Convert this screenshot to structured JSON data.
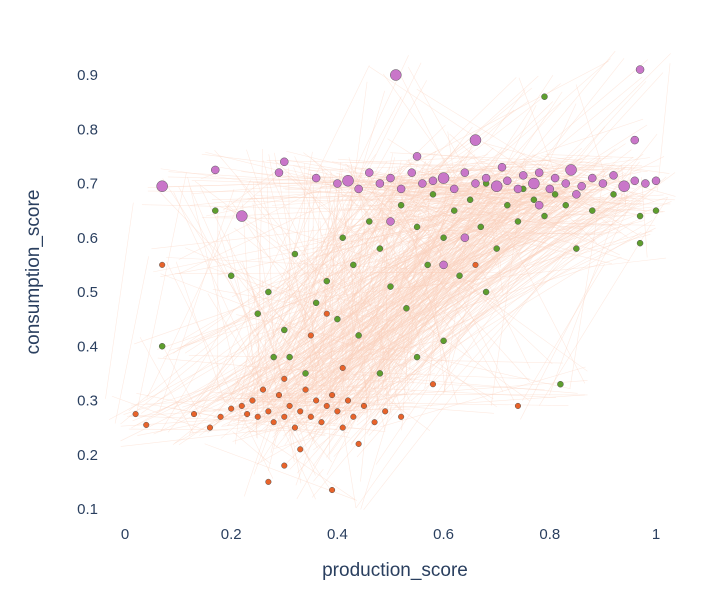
{
  "chart_data": {
    "type": "scatter",
    "title": "",
    "xlabel": "production_score",
    "ylabel": "consumption_score",
    "xlim": [
      -0.02,
      1.03
    ],
    "ylim": [
      0.08,
      0.93
    ],
    "x_ticks": [
      0,
      0.2,
      0.4,
      0.6,
      0.8,
      1
    ],
    "x_tick_labels": [
      "0",
      "0.2",
      "0.4",
      "0.6",
      "0.8",
      "1"
    ],
    "y_ticks": [
      0.1,
      0.2,
      0.3,
      0.4,
      0.5,
      0.6,
      0.7,
      0.8,
      0.9
    ],
    "y_tick_labels": [
      "0.1",
      "0.2",
      "0.3",
      "0.4",
      "0.5",
      "0.6",
      "0.7",
      "0.8",
      "0.9"
    ],
    "grid": false,
    "legend": "none",
    "background_edges_color": "#fbd0bd",
    "series": [
      {
        "color": "#e8632a",
        "points": [
          [
            0.02,
            0.275
          ],
          [
            0.04,
            0.255
          ],
          [
            0.07,
            0.55
          ],
          [
            0.13,
            0.275
          ],
          [
            0.16,
            0.25
          ],
          [
            0.18,
            0.27
          ],
          [
            0.2,
            0.285
          ],
          [
            0.22,
            0.29
          ],
          [
            0.23,
            0.275
          ],
          [
            0.24,
            0.3
          ],
          [
            0.25,
            0.27
          ],
          [
            0.26,
            0.32
          ],
          [
            0.27,
            0.28
          ],
          [
            0.28,
            0.26
          ],
          [
            0.29,
            0.31
          ],
          [
            0.3,
            0.27
          ],
          [
            0.3,
            0.34
          ],
          [
            0.31,
            0.29
          ],
          [
            0.32,
            0.25
          ],
          [
            0.33,
            0.28
          ],
          [
            0.34,
            0.32
          ],
          [
            0.35,
            0.27
          ],
          [
            0.36,
            0.3
          ],
          [
            0.37,
            0.26
          ],
          [
            0.38,
            0.29
          ],
          [
            0.39,
            0.31
          ],
          [
            0.4,
            0.28
          ],
          [
            0.41,
            0.25
          ],
          [
            0.42,
            0.3
          ],
          [
            0.43,
            0.27
          ],
          [
            0.45,
            0.29
          ],
          [
            0.47,
            0.26
          ],
          [
            0.49,
            0.28
          ],
          [
            0.27,
            0.15
          ],
          [
            0.3,
            0.18
          ],
          [
            0.39,
            0.135
          ],
          [
            0.35,
            0.42
          ],
          [
            0.38,
            0.46
          ],
          [
            0.41,
            0.36
          ],
          [
            0.52,
            0.27
          ],
          [
            0.74,
            0.29
          ],
          [
            0.66,
            0.55
          ],
          [
            0.58,
            0.33
          ],
          [
            0.44,
            0.22
          ],
          [
            0.33,
            0.21
          ]
        ]
      },
      {
        "color": "#5e9e2e",
        "points": [
          [
            0.07,
            0.4
          ],
          [
            0.17,
            0.65
          ],
          [
            0.2,
            0.53
          ],
          [
            0.25,
            0.46
          ],
          [
            0.27,
            0.5
          ],
          [
            0.28,
            0.38
          ],
          [
            0.3,
            0.43
          ],
          [
            0.32,
            0.57
          ],
          [
            0.34,
            0.35
          ],
          [
            0.36,
            0.48
          ],
          [
            0.38,
            0.52
          ],
          [
            0.4,
            0.45
          ],
          [
            0.41,
            0.6
          ],
          [
            0.43,
            0.55
          ],
          [
            0.44,
            0.42
          ],
          [
            0.46,
            0.63
          ],
          [
            0.48,
            0.58
          ],
          [
            0.5,
            0.51
          ],
          [
            0.52,
            0.66
          ],
          [
            0.53,
            0.47
          ],
          [
            0.55,
            0.62
          ],
          [
            0.57,
            0.55
          ],
          [
            0.58,
            0.68
          ],
          [
            0.6,
            0.6
          ],
          [
            0.62,
            0.65
          ],
          [
            0.63,
            0.53
          ],
          [
            0.65,
            0.67
          ],
          [
            0.67,
            0.62
          ],
          [
            0.68,
            0.7
          ],
          [
            0.7,
            0.58
          ],
          [
            0.72,
            0.66
          ],
          [
            0.74,
            0.63
          ],
          [
            0.75,
            0.69
          ],
          [
            0.77,
            0.67
          ],
          [
            0.79,
            0.64
          ],
          [
            0.81,
            0.68
          ],
          [
            0.83,
            0.66
          ],
          [
            0.85,
            0.58
          ],
          [
            0.88,
            0.65
          ],
          [
            0.92,
            0.68
          ],
          [
            0.97,
            0.64
          ],
          [
            1.0,
            0.65
          ],
          [
            0.97,
            0.59
          ],
          [
            0.82,
            0.33
          ],
          [
            0.68,
            0.5
          ],
          [
            0.6,
            0.41
          ],
          [
            0.48,
            0.35
          ],
          [
            0.31,
            0.38
          ],
          [
            0.55,
            0.38
          ],
          [
            0.79,
            0.86
          ]
        ]
      },
      {
        "color": "#c976c9",
        "points": [
          [
            0.07,
            0.695
          ],
          [
            0.17,
            0.725
          ],
          [
            0.29,
            0.72
          ],
          [
            0.36,
            0.71
          ],
          [
            0.4,
            0.7
          ],
          [
            0.42,
            0.705
          ],
          [
            0.44,
            0.69
          ],
          [
            0.46,
            0.72
          ],
          [
            0.48,
            0.7
          ],
          [
            0.5,
            0.71
          ],
          [
            0.51,
            0.9
          ],
          [
            0.52,
            0.69
          ],
          [
            0.54,
            0.72
          ],
          [
            0.56,
            0.7
          ],
          [
            0.58,
            0.705
          ],
          [
            0.6,
            0.71
          ],
          [
            0.62,
            0.69
          ],
          [
            0.64,
            0.72
          ],
          [
            0.66,
            0.7
          ],
          [
            0.68,
            0.71
          ],
          [
            0.7,
            0.695
          ],
          [
            0.71,
            0.73
          ],
          [
            0.72,
            0.705
          ],
          [
            0.74,
            0.69
          ],
          [
            0.75,
            0.715
          ],
          [
            0.77,
            0.7
          ],
          [
            0.78,
            0.72
          ],
          [
            0.8,
            0.69
          ],
          [
            0.81,
            0.71
          ],
          [
            0.83,
            0.7
          ],
          [
            0.84,
            0.725
          ],
          [
            0.86,
            0.695
          ],
          [
            0.88,
            0.71
          ],
          [
            0.9,
            0.7
          ],
          [
            0.92,
            0.715
          ],
          [
            0.94,
            0.695
          ],
          [
            0.96,
            0.705
          ],
          [
            0.98,
            0.7
          ],
          [
            0.97,
            0.91
          ],
          [
            0.96,
            0.78
          ],
          [
            0.66,
            0.78
          ],
          [
            0.64,
            0.6
          ],
          [
            0.6,
            0.55
          ],
          [
            0.5,
            0.63
          ],
          [
            0.78,
            0.66
          ],
          [
            0.22,
            0.64
          ],
          [
            0.55,
            0.75
          ],
          [
            0.85,
            0.68
          ],
          [
            0.3,
            0.74
          ],
          [
            1.0,
            0.705
          ]
        ]
      }
    ]
  }
}
